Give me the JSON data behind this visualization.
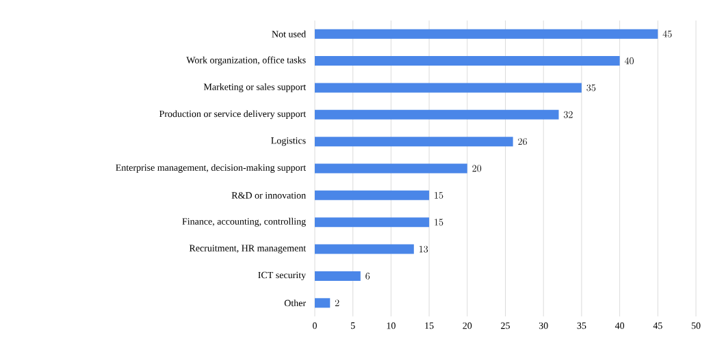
{
  "chart_data": {
    "type": "bar",
    "orientation": "horizontal",
    "categories": [
      "Not used",
      "Work organization, office tasks",
      "Marketing or sales support",
      "Production or service delivery support",
      "Logistics",
      "Enterprise management, decision-making support",
      "R&D or innovation",
      "Finance, accounting, controlling",
      "Recruitment, HR management",
      "ICT security",
      "Other"
    ],
    "values": [
      45,
      40,
      35,
      32,
      26,
      20,
      15,
      15,
      13,
      6,
      2
    ],
    "color": "#4a86e8",
    "xlim": [
      0,
      50
    ],
    "xticks": [
      0,
      5,
      10,
      15,
      20,
      25,
      30,
      35,
      40,
      45,
      50
    ],
    "grid": "x",
    "data_labels": true
  }
}
